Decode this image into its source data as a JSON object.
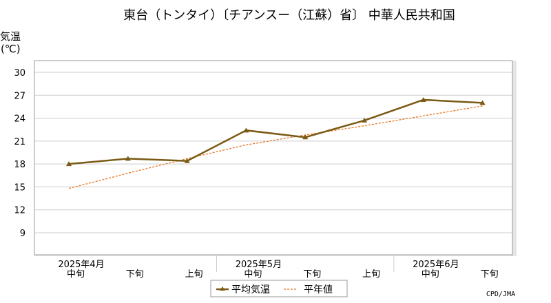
{
  "chart_data": {
    "type": "line",
    "title": "東台（トンタイ）〔チアンスー（江蘇）省〕 中華人民共和国",
    "ylabel_line1": "気温",
    "ylabel_line2": "(℃)",
    "yticks": [
      9,
      12,
      15,
      18,
      21,
      24,
      27,
      30
    ],
    "ylim": [
      6,
      32
    ],
    "x_periods": [
      "中旬",
      "下旬",
      "上旬",
      "中旬",
      "下旬",
      "上旬",
      "中旬",
      "下旬"
    ],
    "x_months": [
      {
        "label": "2025年4月",
        "index": 0
      },
      {
        "label": "2025年5月",
        "index": 3
      },
      {
        "label": "2025年6月",
        "index": 6
      }
    ],
    "series": [
      {
        "name": "平均気温",
        "color": "#7a5a14",
        "style": "solid-marker",
        "values": [
          18.0,
          18.7,
          18.4,
          22.4,
          21.5,
          23.7,
          26.4,
          26.0
        ]
      },
      {
        "name": "平年値",
        "color": "#e8741e",
        "style": "dashed",
        "values": [
          14.8,
          16.8,
          18.7,
          20.5,
          21.8,
          23.0,
          24.3,
          25.6
        ]
      }
    ],
    "grid": true,
    "legend_position": "bottom-center"
  },
  "credit": "CPD/JMA"
}
